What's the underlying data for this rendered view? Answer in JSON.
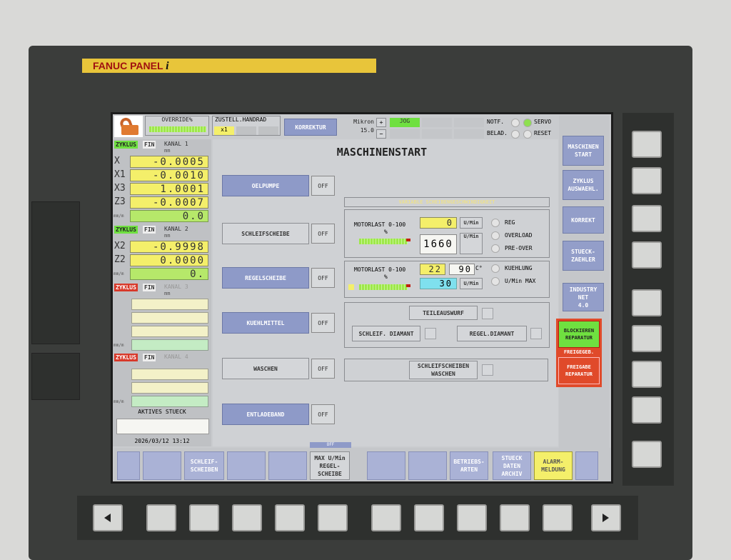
{
  "panel": {
    "brand": "FANUC PANEL",
    "brand_suffix": "i"
  },
  "header": {
    "override_label": "OVERRIDE%",
    "zustell_label": "ZUSTELL.HANDRAD",
    "zustell_value": "x1",
    "korrektur": "KORREKTUR",
    "mikron_label": "Mikron",
    "mikron_value": "15.0",
    "plus": "+",
    "minus": "−",
    "mode": "JOG",
    "notf": "NOTF.",
    "belad": "BELAD.",
    "servo": "SERVO",
    "reset": "RESET"
  },
  "channels": [
    {
      "zyklus": "ZYKLUS",
      "fin": "FIN",
      "kanal": "KANAL 1",
      "unit": "mm",
      "axes": [
        {
          "name": "X",
          "value": "-0.0005"
        },
        {
          "name": "X1",
          "value": "-0.0010"
        },
        {
          "name": "X3",
          "value": "1.0001"
        },
        {
          "name": "Z3",
          "value": "-0.0007"
        }
      ],
      "feed_unit": "mm/m",
      "feed": "0.0"
    },
    {
      "zyklus": "ZYKLUS",
      "fin": "FIN",
      "kanal": "KANAL 2",
      "unit": "mm",
      "axes": [
        {
          "name": "X2",
          "value": "-0.9998"
        },
        {
          "name": "Z2",
          "value": "0.0000"
        }
      ],
      "feed_unit": "mm/m",
      "feed": "0."
    },
    {
      "zyklus": "ZYKLUS",
      "fin": "FIN",
      "kanal": "KANAL 3",
      "unit": "mm",
      "feed_unit": "mm/m"
    },
    {
      "zyklus": "ZYKLUS",
      "fin": "FIN",
      "kanal": "KANAL 4",
      "feed_unit": "mm/m"
    }
  ],
  "aktives_stueck": "AKTIVES STUECK",
  "datetime": "2026/03/12 13:12",
  "main": {
    "title": "MASCHINENSTART",
    "rows": [
      {
        "label": "OELPUMPE",
        "state": "OFF"
      },
      {
        "label": "SCHLEIFSCHEIBE",
        "state": "OFF"
      },
      {
        "label": "REGELSCHEIBE",
        "state": "OFF"
      },
      {
        "label": "KUEHLMITTEL",
        "state": "OFF"
      },
      {
        "label": "WASCHEN",
        "state": "OFF"
      },
      {
        "label": "ENTLADEBAND",
        "state": "OFF"
      }
    ],
    "section_title": "VARIABLE SCHEIBENGESCHWINDIGKEIT",
    "motor1": {
      "label": "MOTORLAST 0-100",
      "pct": "%",
      "value": "0",
      "unit": "U/Min",
      "value2": "1660",
      "unit2": "U/Min",
      "load": 0.9,
      "radios": [
        "REG",
        "OVERLOAD",
        "PRE-OVER"
      ]
    },
    "motor2": {
      "label": "MOTORLAST 0-100",
      "pct": "%",
      "value": "22",
      "temp": "90",
      "temp_unit": "C°",
      "speed": "30",
      "unit": "U/Min",
      "load": 0.9,
      "radios": [
        "KUEHLUNG",
        "U/Min MAX"
      ]
    },
    "teileauswurf": "TEILEAUSWURF",
    "schleif_diamant": "SCHLEIF. DIAMANT",
    "regel_diamant": "REGEL.DIAMANT",
    "schleifscheiben_waschen": "SCHLEIFSCHEIBEN\nWASCHEN",
    "off_indicator": "OFF"
  },
  "right_menu": [
    {
      "label": "MASCHINEN\nSTART"
    },
    {
      "label": "ZYKLUS\nAUSWAEHL."
    },
    {
      "label": "KORREKT"
    },
    {
      "label": "STUECK-\nZAEHLER"
    },
    {
      "label": "INDUSTRY\nNET\n4.0"
    }
  ],
  "status": {
    "blockieren": "BLOCKIEREN\nREPARATUR",
    "freigeged": "FREIGEGEB.",
    "freigabe": "FREIGABE\nREPARATUR"
  },
  "softkeys": [
    "",
    "",
    "SCHLEIF-\nSCHEIBEN",
    "",
    "",
    "MAX U/Min\nREGEL-\nSCHEIBE",
    "",
    "",
    "BETRIEBS-\nARTEN",
    "STUECK\nDATEN\nARCHIV",
    "ALARM-\nMELDUNG",
    ""
  ],
  "colors": {
    "yellow_field": "#f4ef6a",
    "green_field": "#b6e86a",
    "button_blue": "#8e9ac8",
    "alarm_red": "#e04a2a",
    "status_green": "#6fe040"
  }
}
